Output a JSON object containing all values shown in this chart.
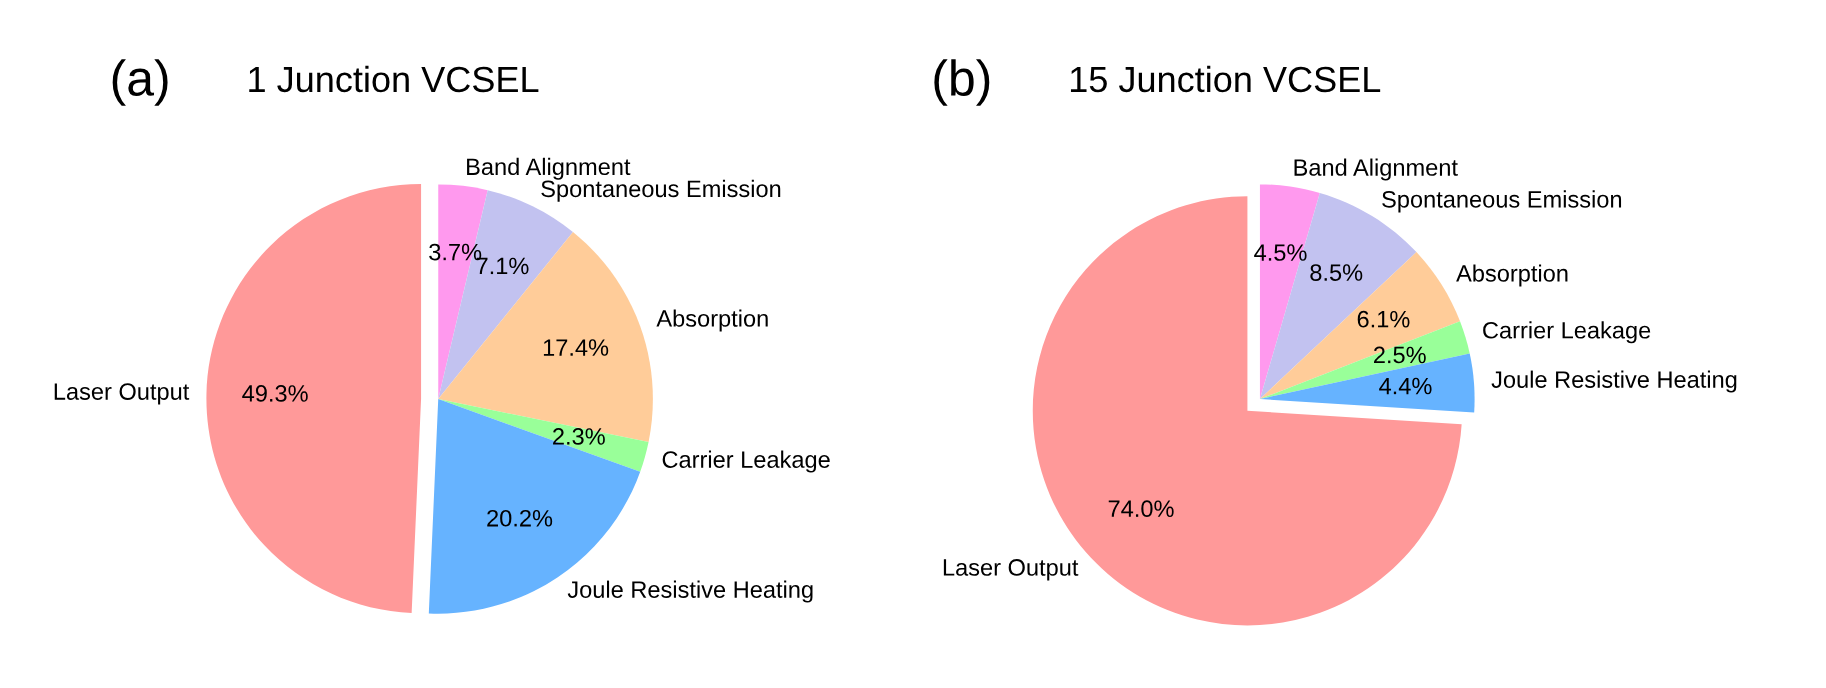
{
  "chart_data": [
    {
      "type": "pie",
      "title": "1 Junction VCSEL",
      "annotations": [
        "(a)"
      ],
      "categories": [
        "Band Alignment",
        "Spontaneous Emission",
        "Absorption",
        "Carrier Leakage",
        "Joule Resistive Heating",
        "Laser Output"
      ],
      "values": [
        3.7,
        7.1,
        17.4,
        2.3,
        20.2,
        49.3
      ],
      "value_labels": [
        "3.7%",
        "7.1%",
        "17.4%",
        "2.3%",
        "20.2%",
        "49.3%"
      ],
      "colors": [
        "#ff99ee",
        "#c2c2f0",
        "#ffcc99",
        "#99ff99",
        "#66b3ff",
        "#ff9999"
      ]
    },
    {
      "type": "pie",
      "title": "15 Junction VCSEL",
      "annotations": [
        "(b)"
      ],
      "categories": [
        "Band Alignment",
        "Spontaneous Emission",
        "Absorption",
        "Carrier Leakage",
        "Joule Resistive Heating",
        "Laser Output"
      ],
      "values": [
        4.5,
        8.5,
        6.1,
        2.5,
        4.4,
        74.0
      ],
      "value_labels": [
        "4.5%",
        "8.5%",
        "6.1%",
        "2.5%",
        "4.4%",
        "74.0%"
      ],
      "colors": [
        "#ff99ee",
        "#c2c2f0",
        "#ffcc99",
        "#99ff99",
        "#66b3ff",
        "#ff9999"
      ]
    }
  ]
}
